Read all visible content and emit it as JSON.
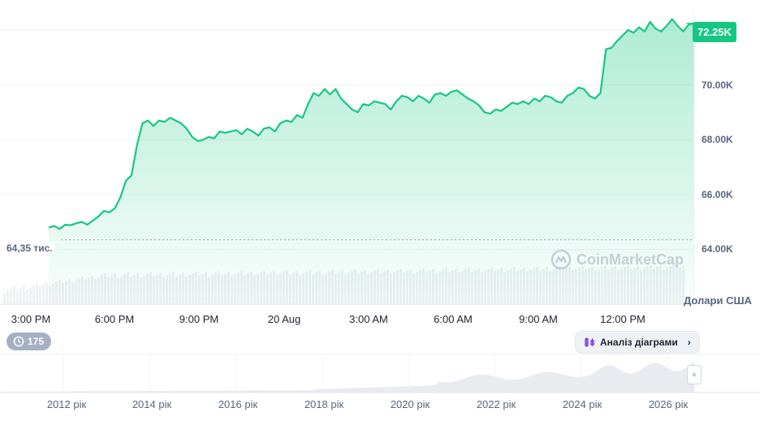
{
  "chart_data": {
    "type": "area",
    "x_ticks": [
      "3:00 PM",
      "6:00 PM",
      "9:00 PM",
      "20 Aug",
      "3:00 AM",
      "6:00 AM",
      "9:00 AM",
      "12:00 PM"
    ],
    "y_ticks": [
      "64.00K",
      "66.00K",
      "68.00K",
      "70.00K"
    ],
    "ylim": [
      62000,
      72800
    ],
    "current_price_label": "72.25K",
    "open_label": "64,35 тис.",
    "open_value": 64350,
    "y_unit_label": "Долари США",
    "series": [
      {
        "color": "#16c784",
        "values": [
          64800,
          64850,
          64750,
          64900,
          64880,
          64950,
          65000,
          64900,
          65050,
          65200,
          65400,
          65350,
          65500,
          65900,
          66500,
          66700,
          67800,
          68600,
          68700,
          68500,
          68700,
          68650,
          68800,
          68700,
          68600,
          68400,
          68100,
          67950,
          68000,
          68100,
          68050,
          68300,
          68250,
          68300,
          68350,
          68200,
          68400,
          68300,
          68150,
          68400,
          68450,
          68300,
          68600,
          68700,
          68650,
          68900,
          68800,
          69300,
          69700,
          69600,
          69850,
          69650,
          69850,
          69500,
          69300,
          69100,
          69000,
          69300,
          69250,
          69400,
          69350,
          69300,
          69100,
          69400,
          69600,
          69550,
          69400,
          69600,
          69500,
          69350,
          69650,
          69700,
          69600,
          69750,
          69800,
          69650,
          69500,
          69400,
          69250,
          69000,
          68950,
          69100,
          69050,
          69200,
          69350,
          69300,
          69400,
          69300,
          69500,
          69400,
          69600,
          69550,
          69400,
          69350,
          69600,
          69700,
          69900,
          69850,
          69600,
          69500,
          69700,
          71300,
          71350,
          71600,
          71800,
          72000,
          71900,
          72100,
          71950,
          72300,
          72050,
          71950,
          72150,
          72400,
          72150,
          71950,
          72200,
          72250
        ]
      }
    ],
    "volume_hint": "bars"
  },
  "controls": {
    "history_count": "175",
    "analysis_label": "Аналіз діаграми",
    "watermark": "CoinMarketCap"
  },
  "navigator": {
    "year_labels": [
      "2012 рік",
      "2014 рік",
      "2016 рік",
      "2018 рік",
      "2020 рік",
      "2022 рік",
      "2024 рік",
      "2026 рік"
    ]
  },
  "colors": {
    "accent": "#16c784",
    "grid": "#eff2f5",
    "text": "#58667e"
  }
}
